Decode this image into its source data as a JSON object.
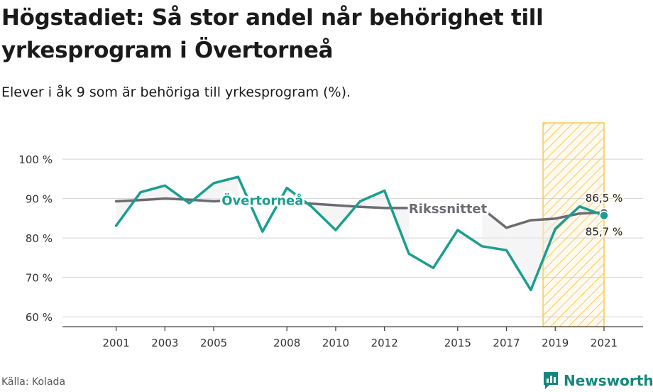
{
  "title": "Högstadiet: Så stor andel når behörighet till yrkesprogram i Övertorneå",
  "subtitle": "Elever i åk 9 som är behöriga till yrkesprogram (%).",
  "source": "Källa: Kolada",
  "brand": "Newsworthy",
  "colors": {
    "teal": "#1a9e90",
    "grey": "#6d6a72",
    "highlight": "#f8c85a"
  },
  "chart_data": {
    "type": "line",
    "x": [
      2001,
      2002,
      2003,
      2004,
      2005,
      2006,
      2007,
      2008,
      2009,
      2010,
      2011,
      2012,
      2013,
      2014,
      2015,
      2016,
      2017,
      2018,
      2019,
      2020,
      2021
    ],
    "x_ticks": [
      {
        "value": 2001,
        "label": "2001"
      },
      {
        "value": 2003,
        "label": "2003"
      },
      {
        "value": 2005,
        "label": "2005"
      },
      {
        "value": 2008,
        "label": "2008"
      },
      {
        "value": 2010,
        "label": "2010"
      },
      {
        "value": 2012,
        "label": "2012"
      },
      {
        "value": 2015,
        "label": "2015"
      },
      {
        "value": 2017,
        "label": "2017"
      },
      {
        "value": 2019,
        "label": "2019"
      },
      {
        "value": 2021,
        "label": "2021"
      }
    ],
    "y_ticks": [
      {
        "value": 60,
        "label": "60 %"
      },
      {
        "value": 70,
        "label": "70 %"
      },
      {
        "value": 80,
        "label": "80 %"
      },
      {
        "value": 90,
        "label": "90 %"
      },
      {
        "value": 100,
        "label": "100 %"
      }
    ],
    "xlim": [
      1998.8,
      2022.6
    ],
    "ylim": [
      57.5,
      109.2
    ],
    "highlight_range": [
      2018.5,
      2021
    ],
    "series": [
      {
        "name": "Övertorneå",
        "color": "#1a9e90",
        "values": [
          83.1,
          91.6,
          93.3,
          88.8,
          93.9,
          95.5,
          81.6,
          92.7,
          88.0,
          82.0,
          89.3,
          92.0,
          76.0,
          72.4,
          82.0,
          77.9,
          76.9,
          66.8,
          82.3,
          88.0,
          85.7
        ]
      },
      {
        "name": "Rikssnittet",
        "color": "#6d6a72",
        "values": [
          89.3,
          89.6,
          90.0,
          89.7,
          89.3,
          89.6,
          null,
          89.4,
          88.7,
          88.3,
          87.9,
          87.6,
          87.6,
          null,
          null,
          87.5,
          82.6,
          84.5,
          84.9,
          86.2,
          86.5
        ]
      }
    ],
    "labels": {
      "overtornea_value": "85,7 %",
      "riks_value": "86,5 %"
    }
  }
}
